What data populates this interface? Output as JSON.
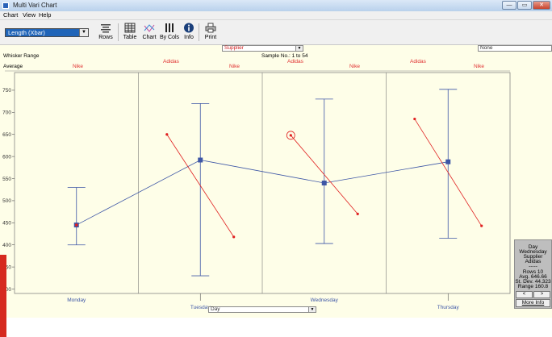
{
  "window": {
    "title": "Multi Vari Chart",
    "controls": {
      "minimize": "—",
      "maximize": "▭",
      "close": "✕"
    }
  },
  "menu": [
    {
      "label": "Chart"
    },
    {
      "label": "View"
    },
    {
      "label": "Help"
    }
  ],
  "toolbar": {
    "measure_selected": "Length (Xbar)",
    "buttons": [
      {
        "label": "Rows",
        "icon": "rows-icon"
      },
      {
        "label": "Table",
        "icon": "table-icon"
      },
      {
        "label": "Chart",
        "icon": "chart-icon"
      },
      {
        "label": "By Cols",
        "icon": "bycols-icon"
      },
      {
        "label": "Info",
        "icon": "info-icon"
      },
      {
        "label": "Print",
        "icon": "print-icon"
      }
    ]
  },
  "chart": {
    "supplier_select": "Supplier",
    "second_select": "None",
    "x_factor_select": "Day",
    "whisker_label": "Whisker Range",
    "average_label": "Average",
    "sample_label": "Sample No.: 1 to 54",
    "supplier_labels": [
      "Nike",
      "Adidas",
      "Nike",
      "Adidas",
      "Nike",
      "Adidas",
      "Nike"
    ],
    "colors": {
      "day_series": "#3d56a6",
      "supplier_series": "#e02020",
      "background": "#fefee8"
    }
  },
  "chart_data": {
    "type": "line",
    "categories": [
      "Monday",
      "Tuesday",
      "Wednesday",
      "Thursday"
    ],
    "yticks": [
      300,
      350,
      400,
      450,
      500,
      550,
      600,
      650,
      700,
      750
    ],
    "ylim": [
      290,
      790
    ],
    "day_means": [
      445,
      592,
      540,
      588
    ],
    "whiskers": [
      {
        "low": 400,
        "high": 530
      },
      {
        "low": 330,
        "high": 720
      },
      {
        "low": 403,
        "high": 730
      },
      {
        "low": 415,
        "high": 752
      }
    ],
    "supplier_lines": [
      {
        "day": "Tuesday",
        "values": [
          650,
          418
        ]
      },
      {
        "day": "Wednesday",
        "values": [
          648,
          470
        ]
      },
      {
        "day": "Thursday",
        "values": [
          685,
          443
        ]
      }
    ],
    "highlighted": {
      "day": "Wednesday",
      "supplier": "Adidas",
      "value": 648
    }
  },
  "info_panel": {
    "lines": [
      "Day",
      "Wednesday",
      "Supplier",
      "Adidas",
      "-----",
      "Rows 10",
      "Avg. 646.66",
      "St. Dev. 44.323",
      "Range 160.8"
    ],
    "prev": "<",
    "next": ">",
    "more": "More Info"
  }
}
